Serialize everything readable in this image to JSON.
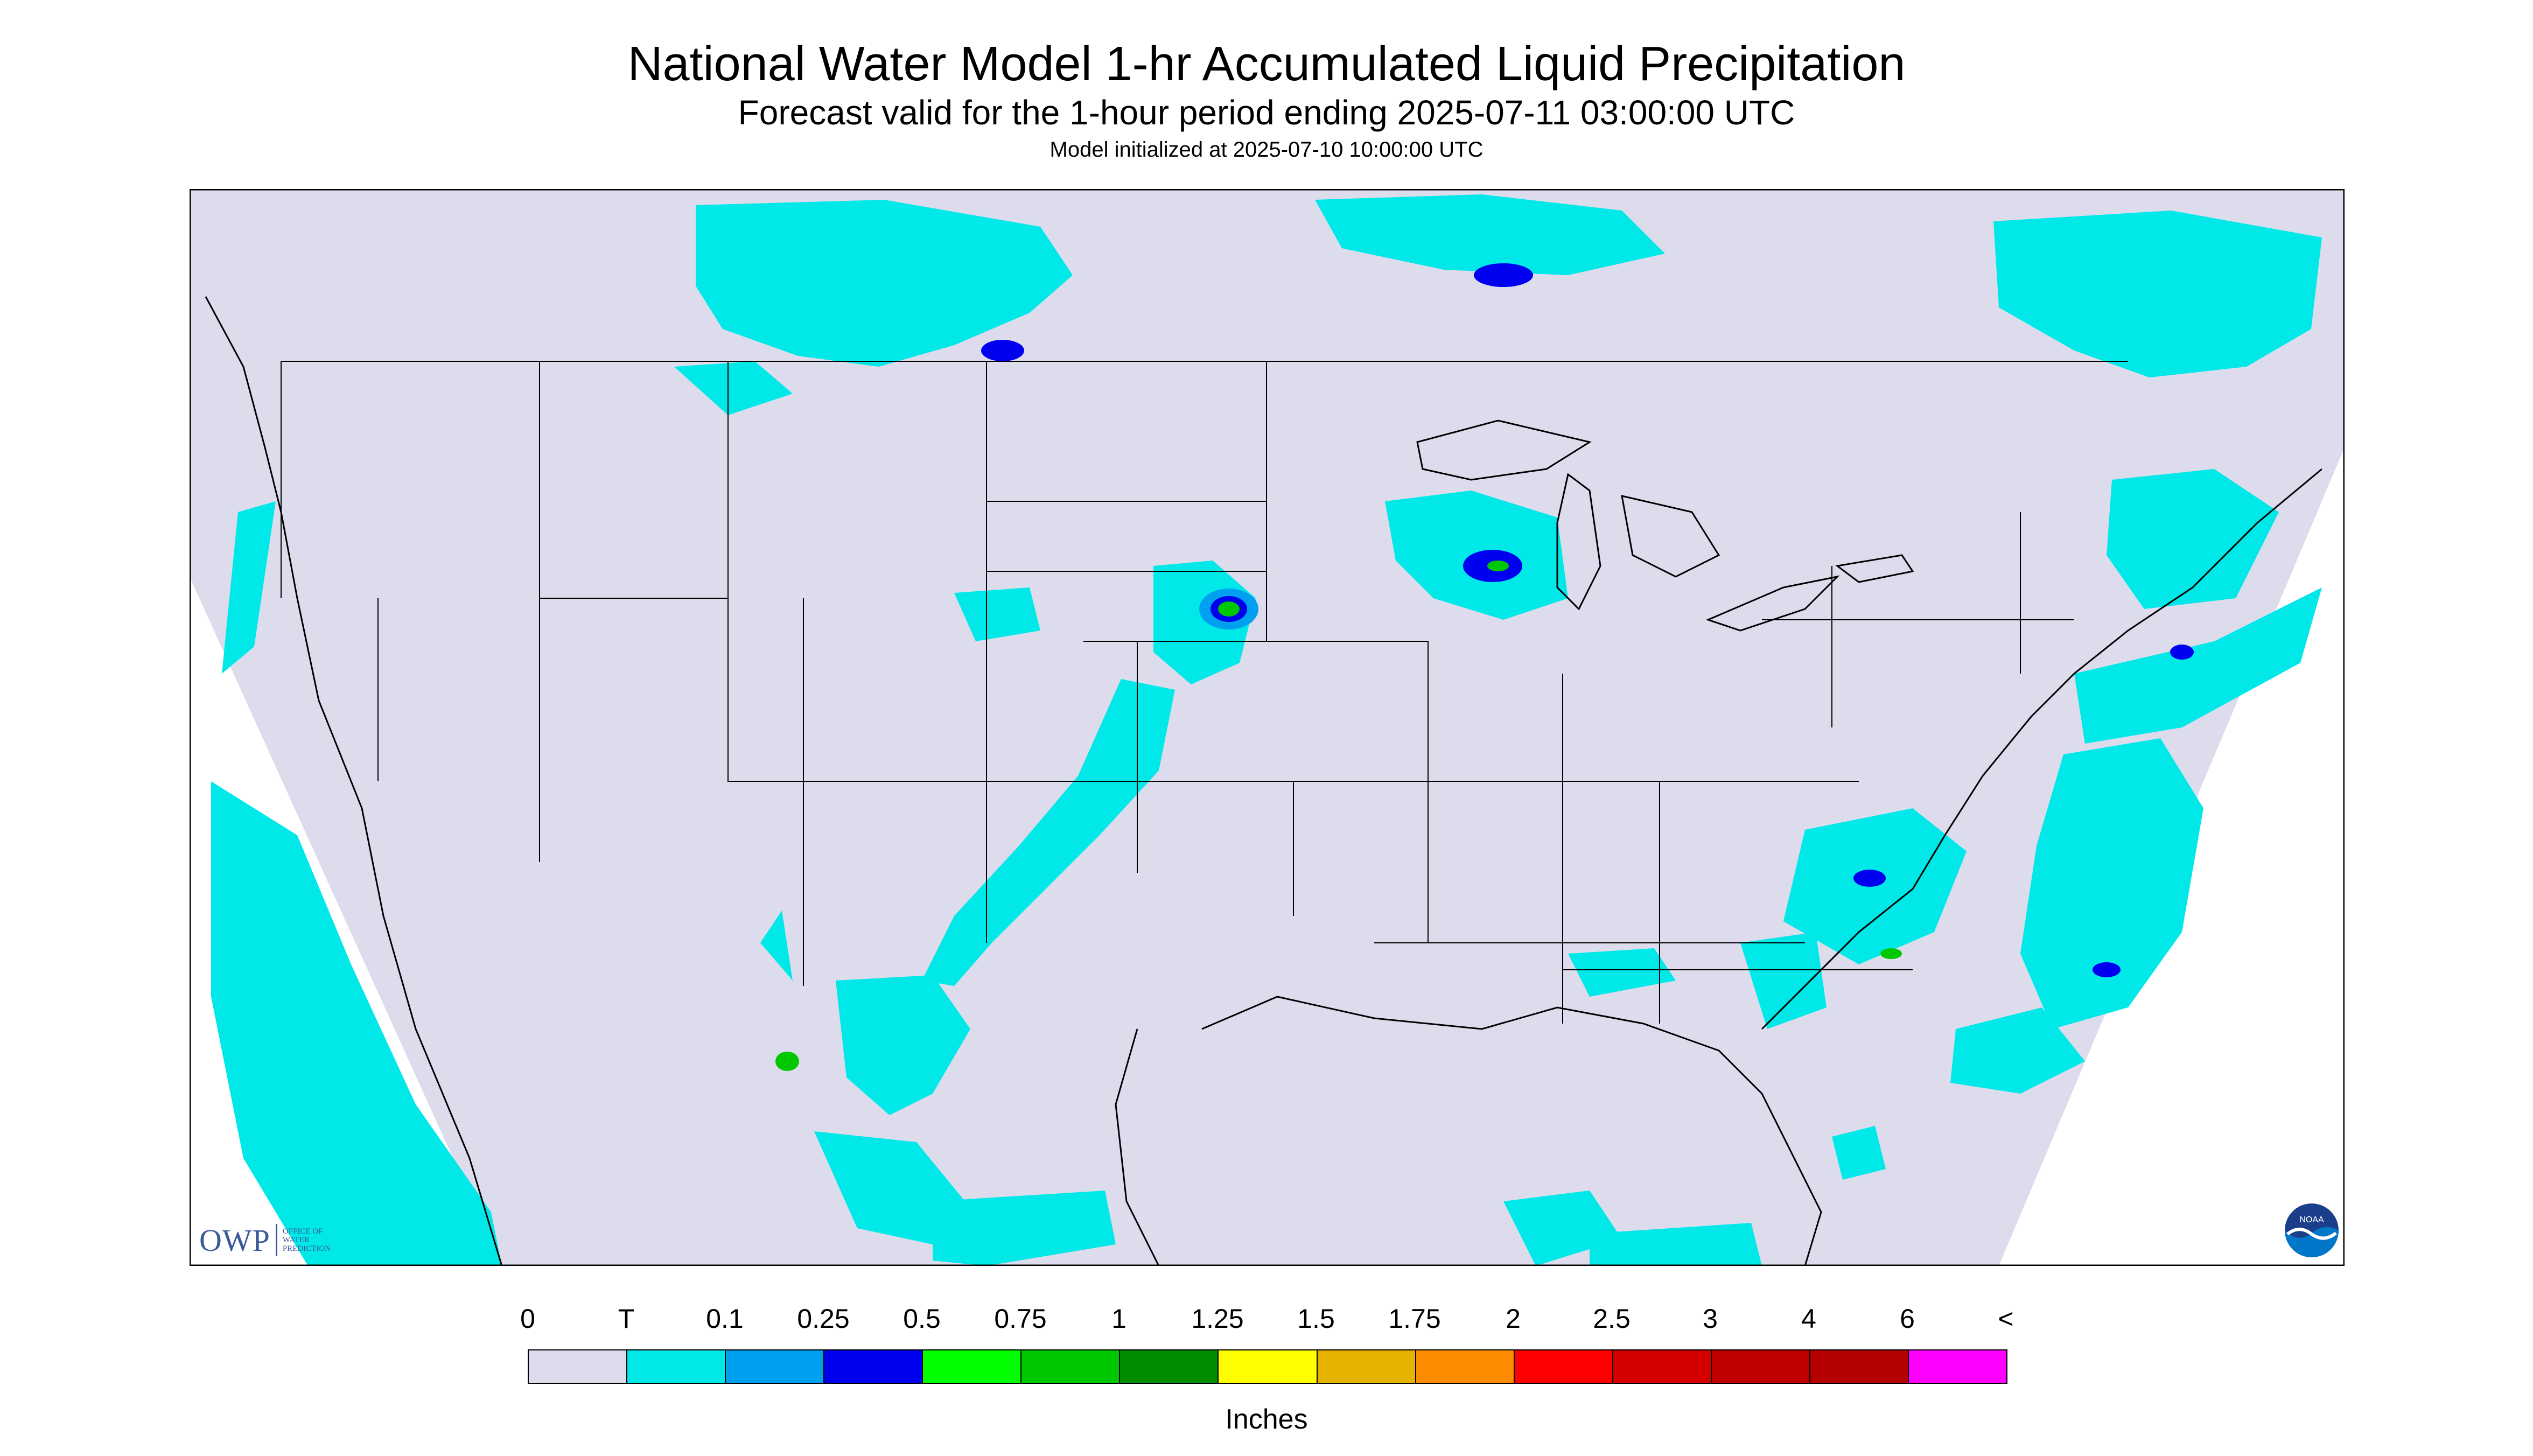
{
  "header": {
    "title": "National Water Model 1-hr Accumulated Liquid Precipitation",
    "subtitle": "Forecast valid for the 1-hour period ending 2025-07-11 03:00:00 UTC",
    "init": "Model initialized at 2025-07-10 10:00:00 UTC"
  },
  "map": {
    "background_color": "#dcdced",
    "border_color": "#000000",
    "line_color": "#000000"
  },
  "logos": {
    "owp_mark": "OWP",
    "owp_text": [
      "OFFICE OF",
      "WATER",
      "PREDICTION"
    ],
    "noaa_text": "NOAA"
  },
  "legend": {
    "labels": [
      "0",
      "T",
      "0.1",
      "0.25",
      "0.5",
      "0.75",
      "1",
      "1.25",
      "1.5",
      "1.75",
      "2",
      "2.5",
      "3",
      "4",
      "6",
      "<"
    ],
    "colors": [
      "#dcdced",
      "#00e8e8",
      "#00a0f0",
      "#0000f0",
      "#00ff00",
      "#00c800",
      "#008c00",
      "#ffff00",
      "#e6b400",
      "#ff8c00",
      "#ff0000",
      "#d40000",
      "#c00000",
      "#b40000",
      "#ff00ff",
      "#9b59c8"
    ],
    "units": "Inches"
  }
}
